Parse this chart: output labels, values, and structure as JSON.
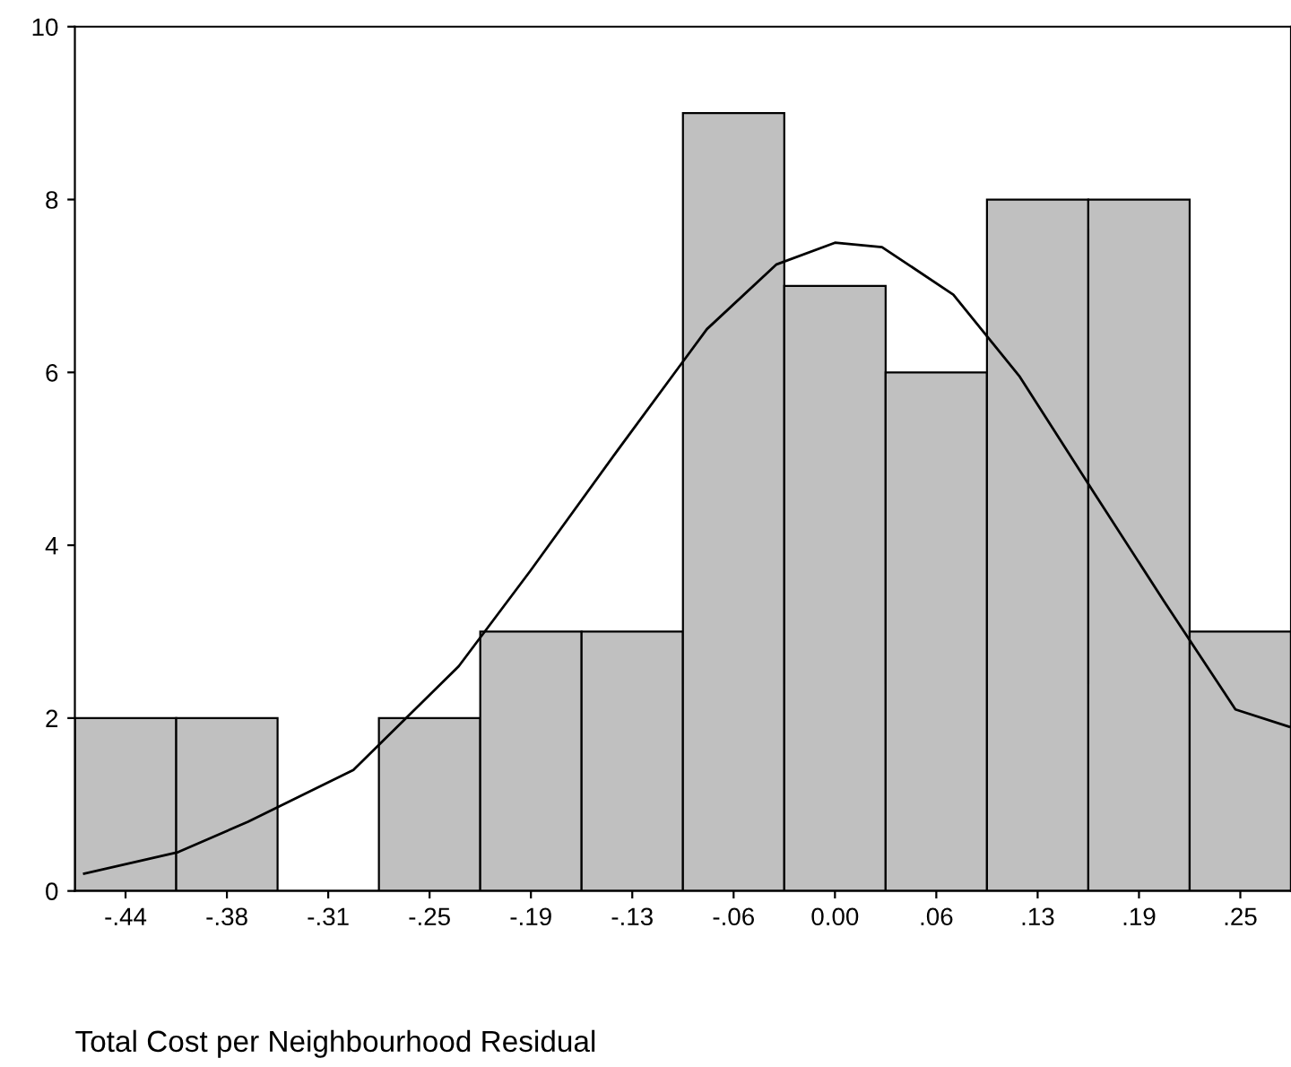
{
  "chart_data": {
    "type": "histogram",
    "xlabel": "Total Cost per Neighbourhood Residual",
    "bins": [
      -0.46875,
      -0.40625,
      -0.34375,
      -0.28125,
      -0.21875,
      -0.15625,
      -0.09375,
      -0.03125,
      0.03125,
      0.09375,
      0.15625,
      0.21875,
      0.28125
    ],
    "values": [
      2,
      2,
      0,
      2,
      3,
      3,
      9,
      7,
      6,
      8,
      8,
      3
    ],
    "color": "#c0c0c0",
    "series": [
      {
        "type": "line",
        "color": "#000000",
        "x": [
          -0.463,
          -0.405,
          -0.362,
          -0.297,
          -0.232,
          -0.188,
          -0.134,
          -0.079,
          -0.036,
          0.0,
          0.029,
          0.073,
          0.114,
          0.16,
          0.203,
          0.247,
          0.28
        ],
        "values": [
          0.2,
          0.45,
          0.8,
          1.4,
          2.6,
          3.7,
          5.1,
          6.5,
          7.25,
          7.5,
          7.45,
          6.9,
          5.95,
          4.6,
          3.35,
          2.1,
          1.9
        ]
      }
    ],
    "xlim": [
      -0.46875,
      0.28125
    ],
    "xticks": [
      {
        "value": -0.4375,
        "label": "-.44"
      },
      {
        "value": -0.375,
        "label": "-.38"
      },
      {
        "value": -0.3125,
        "label": "-.31"
      },
      {
        "value": -0.25,
        "label": "-.25"
      },
      {
        "value": -0.1875,
        "label": "-.19"
      },
      {
        "value": -0.125,
        "label": "-.13"
      },
      {
        "value": -0.0625,
        "label": "-.06"
      },
      {
        "value": 0.0,
        "label": "0.00"
      },
      {
        "value": 0.0625,
        "label": ".06"
      },
      {
        "value": 0.125,
        "label": ".13"
      },
      {
        "value": 0.1875,
        "label": ".19"
      },
      {
        "value": 0.25,
        "label": ".25"
      }
    ],
    "ylim": [
      0,
      10
    ],
    "yticks": [
      0,
      2,
      4,
      6,
      8,
      10
    ],
    "grid": false,
    "legend": false
  }
}
